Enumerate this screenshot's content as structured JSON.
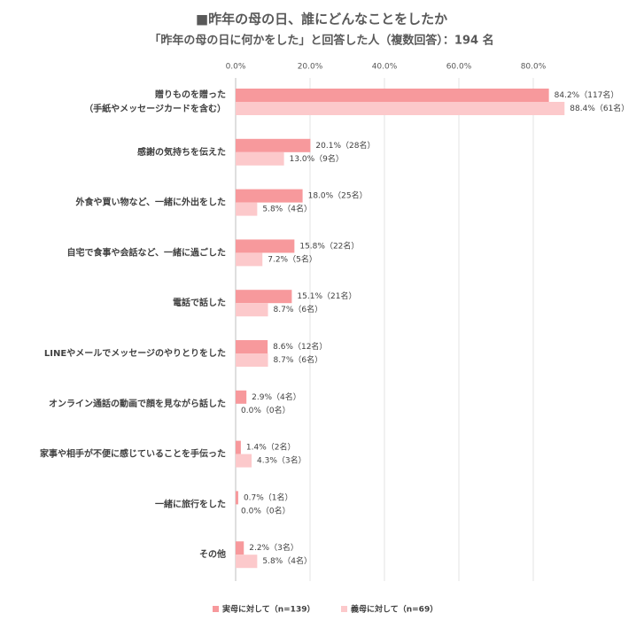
{
  "chart_data": {
    "type": "hbar",
    "title": "■昨年の母の日、誰にどんなことをしたか",
    "subtitle": "「昨年の母の日に何かをした」と回答した人（複数回答）：194 名",
    "categories": [
      "贈りものを贈った\n（手紙やメッセージカードを含む）",
      "感謝の気持ちを伝えた",
      "外食や買い物など、一緒に外出をした",
      "自宅で食事や会話など、一緒に過ごした",
      "電話で話した",
      "LINEやメールでメッセージのやりとりをした",
      "オンライン通話の動画で顔を見ながら話した",
      "家事や相手が不便に感じていることを手伝った",
      "一緒に旅行をした",
      "その他"
    ],
    "series": [
      {
        "name": "実母に対して（n=139）",
        "color": "#f7999c",
        "values": [
          84.2,
          20.1,
          18.0,
          15.8,
          15.1,
          8.6,
          2.9,
          1.4,
          0.7,
          2.2
        ],
        "value_labels": [
          "84.2%（117名）",
          "20.1%（28名）",
          "18.0%（25名）",
          "15.8%（22名）",
          "15.1%（21名）",
          "8.6%（12名）",
          "2.9%（4名）",
          "1.4%（2名）",
          "0.7%（1名）",
          "2.2%（3名）"
        ]
      },
      {
        "name": "義母に対して（n=69）",
        "color": "#fcc9cb",
        "values": [
          88.4,
          13.0,
          5.8,
          7.2,
          8.7,
          8.7,
          0.0,
          4.3,
          0.0,
          5.8
        ],
        "value_labels": [
          "88.4%（61名）",
          "13.0%（9名）",
          "5.8%（4名）",
          "7.2%（5名）",
          "8.7%（6名）",
          "8.7%（6名）",
          "0.0%（0名）",
          "4.3%（3名）",
          "0.0%（0名）",
          "5.8%（4名）"
        ]
      }
    ],
    "xlim": [
      0,
      100
    ],
    "xticks": [
      {
        "value": 0,
        "label": "0.0%"
      },
      {
        "value": 20,
        "label": "20.0%"
      },
      {
        "value": 40,
        "label": "40.0%"
      },
      {
        "value": 60,
        "label": "60.0%"
      },
      {
        "value": 80,
        "label": "80.0%"
      }
    ],
    "grid": true,
    "legend": "bottom"
  }
}
